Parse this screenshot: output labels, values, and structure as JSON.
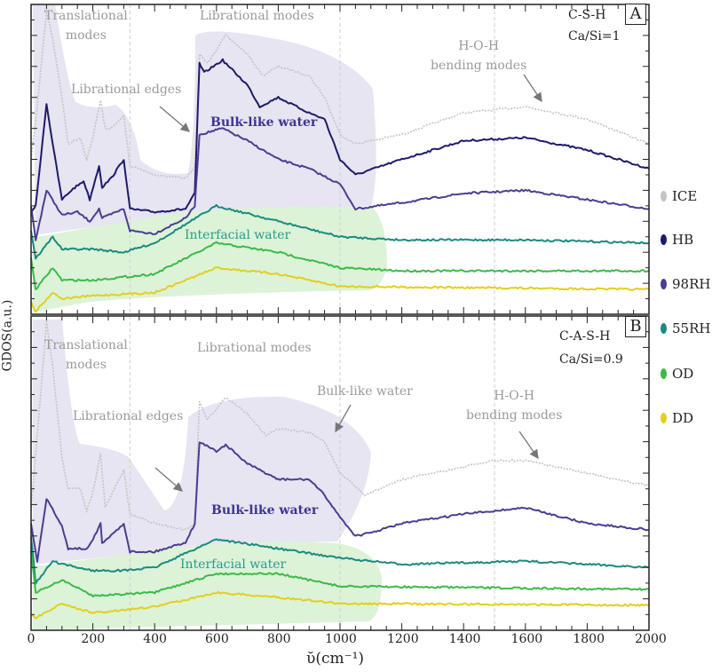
{
  "chart_data": {
    "type": "line",
    "xlabel": "ῠ(cm⁻¹)",
    "ylabel": "GDOS(a.u.)",
    "xlim": [
      0,
      2000
    ],
    "x_ticks": [
      "0",
      "200",
      "400",
      "600",
      "800",
      "1000",
      "1200",
      "1400",
      "1600",
      "1800",
      "2000"
    ],
    "legend": {
      "placement": "right",
      "entries": [
        "ICE",
        "HB",
        "98RH",
        "55RH",
        "OD",
        "DD"
      ]
    },
    "colors": {
      "ICE": "#c4c4c4",
      "HB": "#1e1a6a",
      "98RH": "#4a3e90",
      "55RH": "#1b8a80",
      "OD": "#3cba48",
      "DD": "#e2cf1e"
    },
    "panels": [
      {
        "label": "A",
        "system": "C-S-H",
        "ratio": "Ca/Si=1",
        "ylim": [
          0,
          10
        ],
        "annotations": {
          "translational": [
            "Translational",
            "modes"
          ],
          "librational": "Librational modes",
          "edges": "Librational edges",
          "bulk": "Bulk-like water",
          "interfacial": "Interfacial water",
          "hoh": [
            "H-O-H",
            "bending modes"
          ]
        },
        "series": [
          {
            "name": "ICE",
            "x": [
              0,
              20,
              50,
              70,
              100,
              120,
              160,
              180,
              200,
              225,
              240,
              260,
              300,
              320,
              400,
              500,
              530,
              545,
              570,
              630,
              700,
              750,
              800,
              900,
              950,
              1000,
              1050,
              1200,
              1400,
              1600,
              1800,
              2000
            ],
            "y": [
              5.0,
              6.7,
              9.8,
              8.9,
              7.0,
              5.5,
              5.7,
              5.0,
              5.7,
              6.9,
              6.0,
              6.0,
              6.4,
              4.8,
              4.5,
              4.4,
              4.7,
              8.4,
              8.1,
              9.0,
              8.4,
              7.7,
              8.0,
              7.7,
              7.0,
              5.8,
              5.5,
              5.8,
              6.5,
              6.7,
              6.3,
              5.5
            ]
          },
          {
            "name": "HB",
            "x": [
              0,
              15,
              50,
              70,
              100,
              130,
              170,
              190,
              220,
              230,
              260,
              300,
              320,
              400,
              500,
              530,
              545,
              560,
              620,
              700,
              740,
              800,
              900,
              950,
              1000,
              1050,
              1200,
              1400,
              1600,
              1800,
              2000
            ],
            "y": [
              3.3,
              3.5,
              6.8,
              5.5,
              3.7,
              4.0,
              4.3,
              3.7,
              4.8,
              4.1,
              4.4,
              5.0,
              3.4,
              3.3,
              3.4,
              3.9,
              8.1,
              7.8,
              8.2,
              7.4,
              6.7,
              7.0,
              6.5,
              6.3,
              5.0,
              4.5,
              5.0,
              5.6,
              5.7,
              5.3,
              4.7
            ]
          },
          {
            "name": "98RH",
            "x": [
              0,
              15,
              50,
              100,
              150,
              190,
              220,
              230,
              300,
              320,
              400,
              500,
              530,
              545,
              620,
              700,
              800,
              900,
              1000,
              1050,
              1200,
              1400,
              1600,
              1800,
              2000
            ],
            "y": [
              3.5,
              2.4,
              4.0,
              3.2,
              3.3,
              3.0,
              3.4,
              3.1,
              3.4,
              2.7,
              2.6,
              3.1,
              3.5,
              5.8,
              6.0,
              5.6,
              5.0,
              4.7,
              4.2,
              3.4,
              3.6,
              3.9,
              4.0,
              3.7,
              3.4
            ]
          },
          {
            "name": "55RH",
            "x": [
              0,
              15,
              70,
              100,
              200,
              300,
              400,
              600,
              800,
              1000,
              1200,
              1600,
              2000
            ],
            "y": [
              2.7,
              1.8,
              2.5,
              2.1,
              2.1,
              2.0,
              2.3,
              3.5,
              3.0,
              2.5,
              2.4,
              2.4,
              2.3
            ]
          },
          {
            "name": "OD",
            "x": [
              0,
              15,
              70,
              100,
              200,
              300,
              400,
              600,
              800,
              1000,
              1200,
              2000
            ],
            "y": [
              1.8,
              0.8,
              1.5,
              1.1,
              1.1,
              1.2,
              1.3,
              2.3,
              2.0,
              1.5,
              1.4,
              1.4
            ]
          },
          {
            "name": "DD",
            "x": [
              0,
              15,
              70,
              100,
              200,
              400,
              600,
              800,
              1000,
              2000
            ],
            "y": [
              0.4,
              0.1,
              0.7,
              0.5,
              0.6,
              0.7,
              1.5,
              1.3,
              0.9,
              0.8
            ]
          }
        ]
      },
      {
        "label": "B",
        "system": "C-A-S-H",
        "ratio": "Ca/Si=0.9",
        "ylim": [
          0,
          10
        ],
        "annotations": {
          "translational": [
            "Translational",
            "modes"
          ],
          "librational": "Librational modes",
          "edges": "Librational edges",
          "bulk_ice": "Bulk-like water",
          "bulk": "Bulk-like water",
          "interfacial": "Interfacial water",
          "hoh": [
            "H-O-H",
            "bending modes"
          ]
        },
        "series": [
          {
            "name": "ICE",
            "x": [
              0,
              50,
              70,
              100,
              120,
              160,
              180,
              200,
              225,
              240,
              300,
              320,
              400,
              500,
              530,
              545,
              570,
              630,
              700,
              760,
              800,
              900,
              950,
              1000,
              1080,
              1200,
              1400,
              1500,
              1600,
              1800,
              2000
            ],
            "y": [
              3.8,
              9.8,
              8.4,
              5.5,
              4.5,
              4.5,
              3.8,
              4.4,
              5.6,
              3.9,
              5.1,
              3.7,
              3.4,
              3.2,
              3.4,
              7.3,
              6.7,
              7.4,
              6.9,
              6.2,
              6.4,
              6.3,
              6.0,
              5.0,
              4.3,
              4.8,
              5.2,
              5.4,
              5.4,
              5.0,
              4.6
            ]
          },
          {
            "name": "98RH",
            "x": [
              0,
              20,
              50,
              100,
              120,
              180,
              200,
              225,
              230,
              300,
              320,
              400,
              500,
              530,
              545,
              600,
              630,
              700,
              800,
              900,
              950,
              1000,
              1050,
              1100,
              1200,
              1400,
              1600,
              1800,
              2000
            ],
            "y": [
              3.4,
              2.2,
              4.2,
              3.3,
              2.6,
              2.6,
              2.9,
              3.4,
              2.75,
              3.4,
              2.5,
              2.5,
              2.8,
              3.4,
              6.0,
              5.7,
              5.9,
              5.3,
              4.8,
              4.8,
              4.3,
              3.6,
              3.0,
              3.1,
              3.4,
              3.7,
              3.9,
              3.4,
              3.2
            ]
          },
          {
            "name": "55RH",
            "x": [
              0,
              15,
              70,
              100,
              200,
              300,
              400,
              600,
              800,
              1000,
              1200,
              1600,
              2000
            ],
            "y": [
              3.0,
              1.5,
              2.2,
              2.1,
              1.9,
              1.9,
              2.0,
              2.9,
              2.6,
              2.3,
              2.1,
              2.2,
              2.0
            ]
          },
          {
            "name": "OD",
            "x": [
              0,
              15,
              100,
              200,
              400,
              600,
              800,
              1000,
              2000
            ],
            "y": [
              2.5,
              1.2,
              1.6,
              1.1,
              1.2,
              1.8,
              1.8,
              1.4,
              1.3
            ]
          },
          {
            "name": "DD",
            "x": [
              0,
              15,
              100,
              200,
              400,
              600,
              800,
              1000,
              2000
            ],
            "y": [
              0.5,
              0.4,
              0.85,
              0.55,
              0.75,
              1.2,
              1.05,
              0.85,
              0.8
            ]
          }
        ]
      }
    ]
  }
}
